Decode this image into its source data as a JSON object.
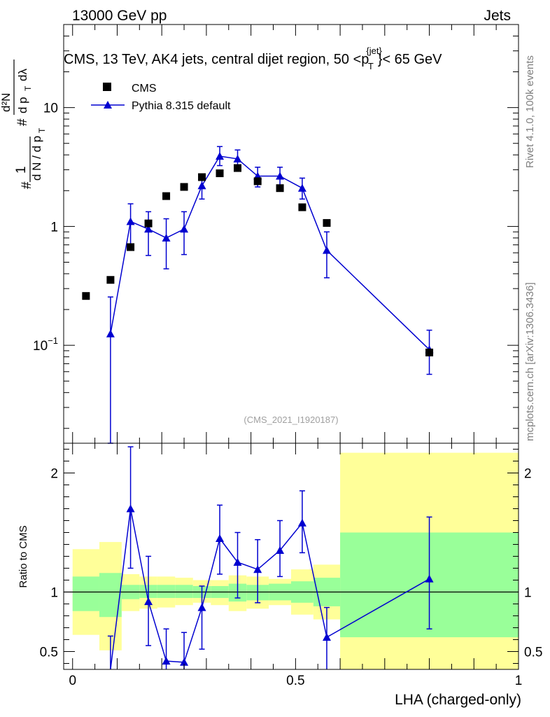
{
  "header": {
    "left": "13000 GeV pp",
    "right": "Jets"
  },
  "side_labels": {
    "rivet": "Rivet 4.1.0,  100k events",
    "mcplots": "mcplots.cern.ch [arXiv:1306.3436]"
  },
  "colors": {
    "cms": "#000000",
    "mc": "#0000d0",
    "band_inner": "#99ff99",
    "band_outer": "#ffff99"
  },
  "chart_data": [
    {
      "type": "scatter",
      "scale": "log",
      "title": "CMS, 13 TeV, AK4 jets, central dijet region, 50 <p",
      "title_sup": "{jet}",
      "title_sub": "T",
      "title_end": "}< 65 GeV",
      "ylabel": "#  1/dN/dp_T  # d²N/dp_T dλ",
      "analysis_tag": "(CMS_2021_I1920187)",
      "xlim": [
        -0.02,
        1.0
      ],
      "ylim": [
        0.015,
        50
      ],
      "yticks": [
        {
          "v": 0.1,
          "base": "10",
          "exp": "−1"
        },
        {
          "v": 1,
          "label": "1"
        },
        {
          "v": 10,
          "label": "10"
        }
      ],
      "legend": [
        {
          "name": "CMS",
          "marker": "square"
        },
        {
          "name": "Pythia 8.315 default",
          "marker": "triangle"
        }
      ],
      "series": [
        {
          "name": "CMS",
          "x": [
            0.03,
            0.085,
            0.13,
            0.17,
            0.21,
            0.25,
            0.29,
            0.33,
            0.37,
            0.415,
            0.465,
            0.515,
            0.57,
            0.8
          ],
          "y": [
            0.26,
            0.355,
            0.67,
            1.06,
            1.8,
            2.15,
            2.6,
            2.8,
            3.1,
            2.4,
            2.1,
            1.45,
            1.07,
            0.087
          ]
        },
        {
          "name": "Pythia 8.315 default",
          "x": [
            0.085,
            0.13,
            0.17,
            0.21,
            0.25,
            0.29,
            0.33,
            0.37,
            0.415,
            0.465,
            0.515,
            0.57,
            0.8
          ],
          "y": [
            0.125,
            1.1,
            0.95,
            0.8,
            0.95,
            2.2,
            3.9,
            3.7,
            2.65,
            2.65,
            2.1,
            0.63,
            0.092
          ],
          "err_low": [
            0.125,
            0.45,
            0.38,
            0.36,
            0.37,
            0.5,
            0.65,
            0.6,
            0.5,
            0.45,
            0.4,
            0.26,
            0.035
          ],
          "err_high": [
            0.13,
            0.45,
            0.38,
            0.36,
            0.38,
            0.5,
            0.8,
            0.7,
            0.5,
            0.5,
            0.45,
            0.27,
            0.042
          ]
        }
      ]
    },
    {
      "type": "line",
      "ylabel": "Ratio to CMS",
      "xlabel": "LHA (charged-only)",
      "xlim": [
        -0.02,
        1.0
      ],
      "ylim": [
        0.35,
        2.25
      ],
      "xticks": [
        {
          "v": 0,
          "label": "0"
        },
        {
          "v": 0.5,
          "label": "0.5"
        },
        {
          "v": 1,
          "label": "1"
        }
      ],
      "yticks": [
        {
          "v": 0.5,
          "label": "0.5"
        },
        {
          "v": 1,
          "label": "1"
        },
        {
          "v": 2,
          "label": "2"
        }
      ],
      "reference": 1,
      "bands": [
        {
          "x0": 0.0,
          "x1": 0.06,
          "in_lo": 0.84,
          "in_hi": 1.13,
          "out_lo": 0.64,
          "out_hi": 1.36
        },
        {
          "x0": 0.06,
          "x1": 0.11,
          "in_lo": 0.79,
          "in_hi": 1.16,
          "out_lo": 0.51,
          "out_hi": 1.42
        },
        {
          "x0": 0.11,
          "x1": 0.15,
          "in_lo": 0.94,
          "in_hi": 1.06,
          "out_lo": 0.84,
          "out_hi": 1.15
        },
        {
          "x0": 0.15,
          "x1": 0.19,
          "in_lo": 0.95,
          "in_hi": 1.06,
          "out_lo": 0.86,
          "out_hi": 1.13
        },
        {
          "x0": 0.19,
          "x1": 0.23,
          "in_lo": 0.95,
          "in_hi": 1.06,
          "out_lo": 0.87,
          "out_hi": 1.13
        },
        {
          "x0": 0.23,
          "x1": 0.27,
          "in_lo": 0.95,
          "in_hi": 1.06,
          "out_lo": 0.89,
          "out_hi": 1.12
        },
        {
          "x0": 0.27,
          "x1": 0.31,
          "in_lo": 0.95,
          "in_hi": 1.05,
          "out_lo": 0.91,
          "out_hi": 1.1
        },
        {
          "x0": 0.31,
          "x1": 0.35,
          "in_lo": 0.95,
          "in_hi": 1.05,
          "out_lo": 0.89,
          "out_hi": 1.1
        },
        {
          "x0": 0.35,
          "x1": 0.39,
          "in_lo": 0.92,
          "in_hi": 1.07,
          "out_lo": 0.84,
          "out_hi": 1.14
        },
        {
          "x0": 0.39,
          "x1": 0.44,
          "in_lo": 0.93,
          "in_hi": 1.06,
          "out_lo": 0.86,
          "out_hi": 1.13
        },
        {
          "x0": 0.44,
          "x1": 0.49,
          "in_lo": 0.93,
          "in_hi": 1.07,
          "out_lo": 0.89,
          "out_hi": 1.11
        },
        {
          "x0": 0.49,
          "x1": 0.54,
          "in_lo": 0.91,
          "in_hi": 1.09,
          "out_lo": 0.81,
          "out_hi": 1.19
        },
        {
          "x0": 0.54,
          "x1": 0.6,
          "in_lo": 0.88,
          "in_hi": 1.12,
          "out_lo": 0.77,
          "out_hi": 1.23
        },
        {
          "x0": 0.6,
          "x1": 1.0,
          "in_lo": 0.62,
          "in_hi": 1.5,
          "out_lo": 0.2,
          "out_hi": 2.17
        }
      ],
      "series": [
        {
          "name": "Pythia 8.315 default",
          "x": [
            0.085,
            0.13,
            0.17,
            0.21,
            0.25,
            0.29,
            0.33,
            0.37,
            0.415,
            0.465,
            0.515,
            0.57,
            0.8
          ],
          "y": [
            0.33,
            1.7,
            0.92,
            0.42,
            0.41,
            0.87,
            1.45,
            1.25,
            1.19,
            1.35,
            1.58,
            0.62,
            1.11
          ],
          "err_low": [
            0.33,
            0.5,
            0.37,
            0.3,
            0.3,
            0.35,
            0.3,
            0.3,
            0.28,
            0.22,
            0.25,
            0.28,
            0.42
          ],
          "err_high": [
            0.3,
            0.52,
            0.38,
            0.27,
            0.25,
            0.18,
            0.28,
            0.25,
            0.25,
            0.25,
            0.27,
            0.25,
            0.52
          ]
        }
      ]
    }
  ]
}
